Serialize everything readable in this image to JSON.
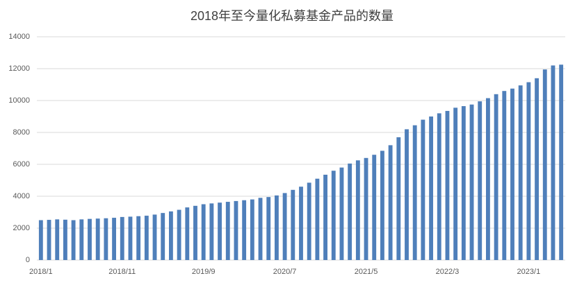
{
  "chart_data": {
    "type": "bar",
    "title": "2018年至今量化私募基金产品的数量",
    "categories": [
      "2018/1",
      null,
      null,
      null,
      null,
      null,
      null,
      null,
      null,
      null,
      "2018/11",
      null,
      null,
      null,
      null,
      null,
      null,
      null,
      null,
      null,
      "2019/9",
      null,
      null,
      null,
      null,
      null,
      null,
      null,
      null,
      null,
      "2020/7",
      null,
      null,
      null,
      null,
      null,
      null,
      null,
      null,
      null,
      "2021/5",
      null,
      null,
      null,
      null,
      null,
      null,
      null,
      null,
      null,
      "2022/3",
      null,
      null,
      null,
      null,
      null,
      null,
      null,
      null,
      null,
      "2023/1",
      null,
      null,
      null,
      null
    ],
    "values": [
      2500,
      2520,
      2550,
      2530,
      2500,
      2550,
      2580,
      2600,
      2620,
      2650,
      2700,
      2720,
      2750,
      2780,
      2850,
      2950,
      3050,
      3150,
      3300,
      3400,
      3500,
      3550,
      3600,
      3650,
      3700,
      3750,
      3800,
      3900,
      3950,
      4050,
      4200,
      4400,
      4600,
      4850,
      5100,
      5350,
      5600,
      5800,
      6050,
      6250,
      6400,
      6600,
      6850,
      7200,
      7700,
      8200,
      8450,
      8800,
      9000,
      9200,
      9350,
      9550,
      9650,
      9750,
      9950,
      10150,
      10400,
      10600,
      10750,
      10950,
      11150,
      11400,
      11950,
      12200,
      12250
    ],
    "color": "#4f7fba",
    "ylim": [
      0,
      14000
    ],
    "yticks": [
      0,
      2000,
      4000,
      6000,
      8000,
      10000,
      12000,
      14000
    ],
    "grid": true
  }
}
